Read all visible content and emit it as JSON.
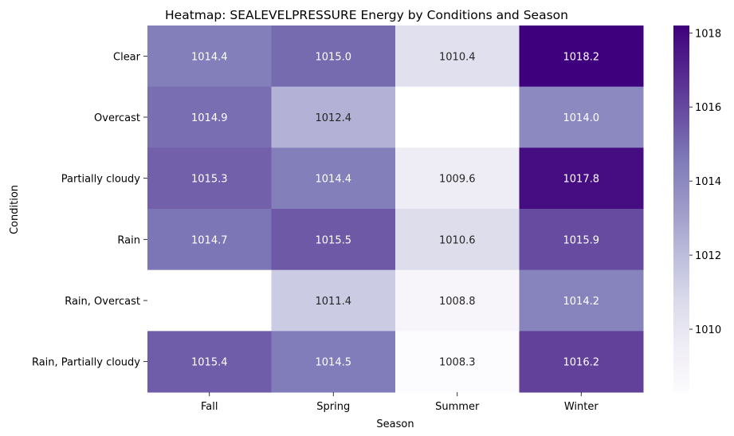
{
  "chart_data": {
    "type": "heatmap",
    "title": "Heatmap: SEALEVELPRESSURE Energy by Conditions and Season",
    "xlabel": "Season",
    "ylabel": "Condition",
    "x_categories": [
      "Fall",
      "Spring",
      "Summer",
      "Winter"
    ],
    "y_categories": [
      "Clear",
      "Overcast",
      "Partially cloudy",
      "Rain",
      "Rain, Overcast",
      "Rain, Partially cloudy"
    ],
    "values": [
      [
        1014.4,
        1015.0,
        1010.4,
        1018.2
      ],
      [
        1014.9,
        1012.4,
        null,
        1014.0
      ],
      [
        1015.3,
        1014.4,
        1009.6,
        1017.8
      ],
      [
        1014.7,
        1015.5,
        1010.6,
        1015.9
      ],
      [
        null,
        1011.4,
        1008.8,
        1014.2
      ],
      [
        1015.4,
        1014.5,
        1008.3,
        1016.2
      ]
    ],
    "colorbar": {
      "min": 1008.3,
      "max": 1018.2,
      "ticks": [
        1010,
        1012,
        1014,
        1016,
        1018
      ],
      "colormap": "Purples"
    },
    "legend": "colorbar-right",
    "grid": false
  }
}
